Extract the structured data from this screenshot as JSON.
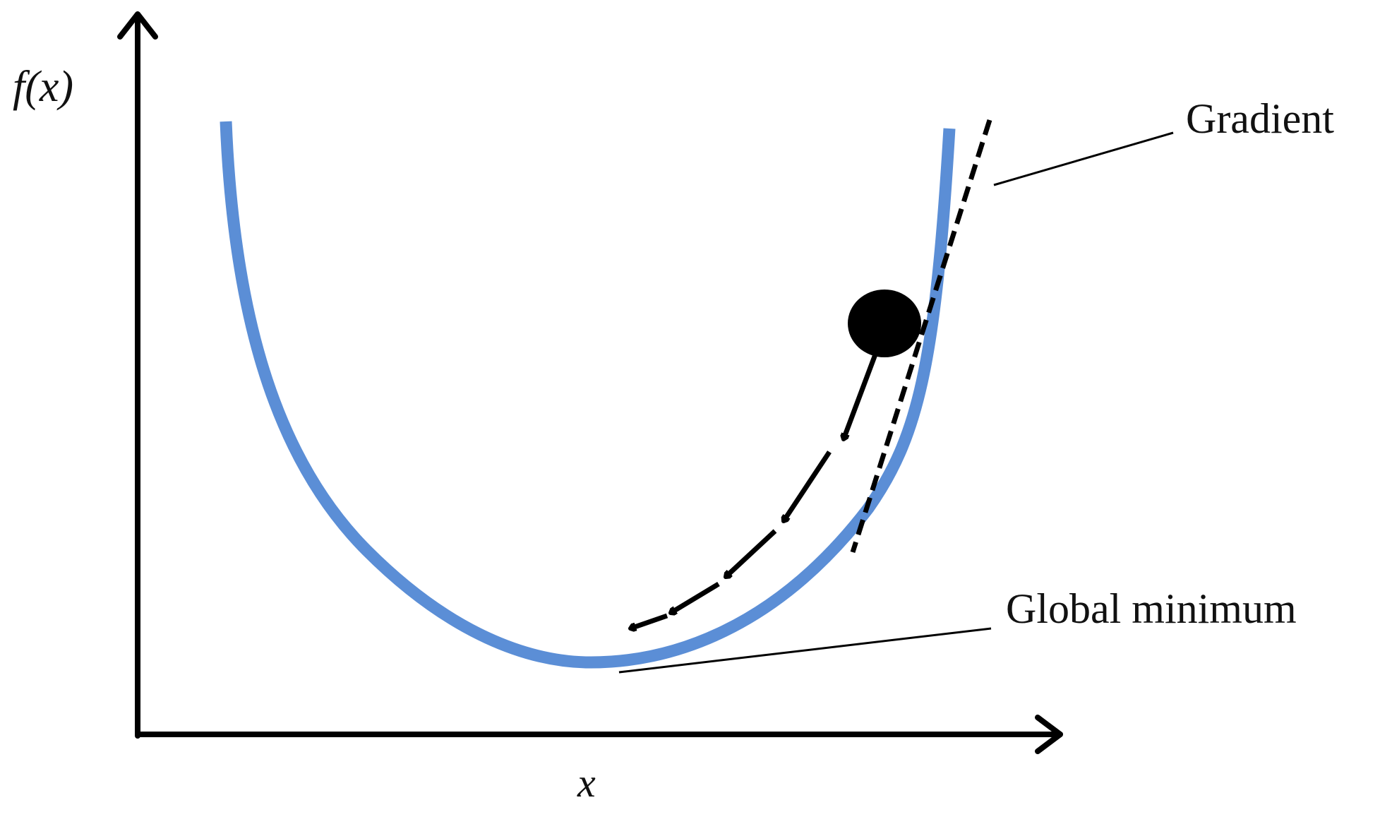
{
  "labels": {
    "y_axis": "f(x)",
    "x_axis": "x",
    "gradient": "Gradient",
    "global_minimum": "Global minimum"
  },
  "colors": {
    "curve": "#5b8ed6",
    "ink": "#000000"
  }
}
